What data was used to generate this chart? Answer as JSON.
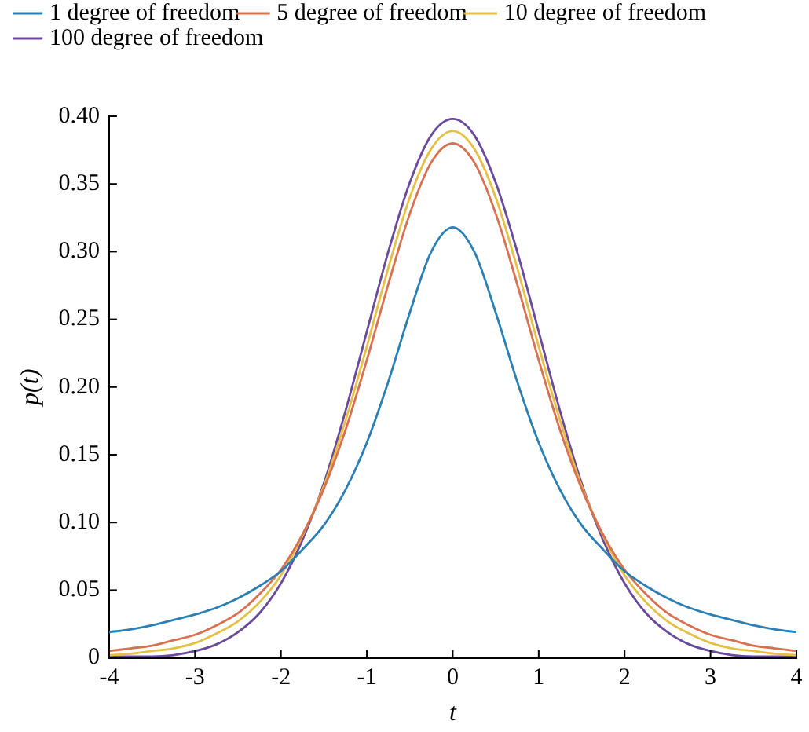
{
  "chart_data": {
    "type": "line",
    "xlabel": "t",
    "ylabel": "p(t)",
    "x": [
      -4,
      -3.75,
      -3.5,
      -3.25,
      -3,
      -2.75,
      -2.5,
      -2.25,
      -2,
      -1.75,
      -1.5,
      -1.25,
      -1,
      -0.75,
      -0.5,
      -0.25,
      0,
      0.25,
      0.5,
      0.75,
      1,
      1.25,
      1.5,
      1.75,
      2,
      2.25,
      2.5,
      2.75,
      3,
      3.25,
      3.5,
      3.75,
      4
    ],
    "series": [
      {
        "name": "1 degree of freedom",
        "color": "#2a7fb5",
        "values": [
          0.019,
          0.021,
          0.024,
          0.028,
          0.032,
          0.037,
          0.044,
          0.053,
          0.064,
          0.08,
          0.098,
          0.124,
          0.159,
          0.204,
          0.255,
          0.3,
          0.318,
          0.3,
          0.255,
          0.204,
          0.159,
          0.124,
          0.098,
          0.08,
          0.064,
          0.053,
          0.044,
          0.037,
          0.032,
          0.028,
          0.024,
          0.021,
          0.019
        ]
      },
      {
        "name": "5 degree of freedom",
        "color": "#d9704f",
        "values": [
          0.005,
          0.007,
          0.009,
          0.013,
          0.017,
          0.024,
          0.033,
          0.047,
          0.065,
          0.091,
          0.125,
          0.168,
          0.22,
          0.276,
          0.328,
          0.366,
          0.38,
          0.366,
          0.328,
          0.276,
          0.22,
          0.168,
          0.125,
          0.091,
          0.065,
          0.047,
          0.033,
          0.024,
          0.017,
          0.013,
          0.009,
          0.007,
          0.005
        ]
      },
      {
        "name": "10 degree of freedom",
        "color": "#e6bf45",
        "values": [
          0.002,
          0.003,
          0.005,
          0.007,
          0.011,
          0.018,
          0.027,
          0.041,
          0.061,
          0.09,
          0.127,
          0.175,
          0.23,
          0.288,
          0.34,
          0.376,
          0.389,
          0.376,
          0.34,
          0.288,
          0.23,
          0.175,
          0.127,
          0.09,
          0.061,
          0.041,
          0.027,
          0.018,
          0.011,
          0.007,
          0.005,
          0.003,
          0.002
        ]
      },
      {
        "name": "100 degree of freedom",
        "color": "#6a4a9c",
        "values": [
          0.001,
          0.001,
          0.001,
          0.002,
          0.005,
          0.01,
          0.019,
          0.033,
          0.055,
          0.087,
          0.129,
          0.182,
          0.241,
          0.3,
          0.351,
          0.386,
          0.398,
          0.386,
          0.351,
          0.3,
          0.241,
          0.182,
          0.129,
          0.087,
          0.055,
          0.033,
          0.019,
          0.01,
          0.005,
          0.002,
          0.001,
          0.001,
          0.001
        ]
      }
    ],
    "xlim": [
      -4,
      4
    ],
    "xticks": [
      -4,
      -3,
      -2,
      -1,
      0,
      1,
      2,
      3,
      4
    ],
    "ylim": [
      0,
      0.4
    ],
    "yticks": [
      0,
      0.05,
      {
        "value": 0.1,
        "label": "0.10"
      },
      0.15,
      {
        "value": 0.2,
        "label": "0.20"
      },
      0.25,
      {
        "value": 0.3,
        "label": "0.30"
      },
      0.35,
      {
        "value": 0.4,
        "label": "0.40"
      }
    ],
    "grid": false,
    "legend": "top left",
    "marker": "none",
    "line_style": "solid"
  }
}
